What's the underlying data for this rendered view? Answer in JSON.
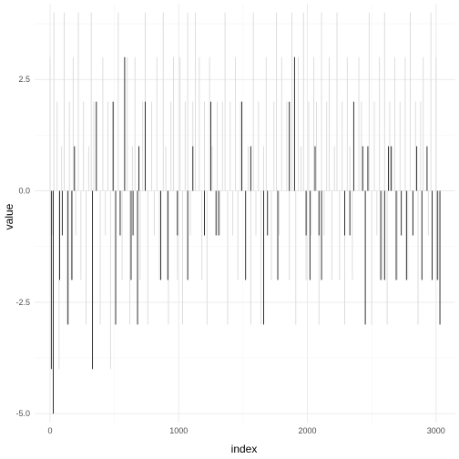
{
  "chart_data": {
    "type": "bar",
    "title": "",
    "xlabel": "index",
    "ylabel": "value",
    "xlim": [
      -120,
      3150
    ],
    "ylim": [
      -5.2,
      4.2
    ],
    "x_ticks": [
      0,
      1000,
      2000,
      3000
    ],
    "y_ticks": [
      -5.0,
      -2.5,
      0.0,
      2.5
    ],
    "x_tick_labels": [
      "0",
      "1000",
      "2000",
      "3000"
    ],
    "y_tick_labels": [
      "-5.0",
      "-2.5",
      "0.0",
      "2.5"
    ],
    "grid": true,
    "legend": "none",
    "colors": {
      "background": "#ffffff",
      "grid_major": "#ebebeb",
      "grid_minor": "#f5f5f5",
      "bar_dark": "#1a1a1a",
      "bar_light": "#d9d9d9"
    },
    "series": [
      {
        "shade": "light",
        "x": [
          0,
          15,
          30,
          55,
          70,
          90,
          110,
          130,
          150,
          165,
          180,
          200,
          220,
          240,
          260,
          280,
          300,
          320,
          340,
          390,
          410,
          430,
          450,
          470,
          490,
          530,
          560,
          600,
          620,
          640,
          660,
          700,
          720,
          740,
          760,
          790,
          810,
          830,
          850,
          880,
          900,
          920,
          940,
          960,
          990,
          1010,
          1030,
          1050,
          1070,
          1090,
          1110,
          1130,
          1160,
          1180,
          1200,
          1220,
          1240,
          1260,
          1300,
          1320,
          1340,
          1360,
          1380,
          1400,
          1420,
          1440,
          1460,
          1480,
          1540,
          1560,
          1580,
          1600,
          1620,
          1640,
          1660,
          1680,
          1720,
          1740,
          1760,
          1780,
          1800,
          1840,
          1860,
          1880,
          1910,
          1930,
          1950,
          1970,
          1990,
          2010,
          2030,
          2050,
          2070,
          2090,
          2110,
          2130,
          2150,
          2170,
          2190,
          2210,
          2230,
          2250,
          2270,
          2290,
          2310,
          2330,
          2350,
          2400,
          2420,
          2480,
          2500,
          2520,
          2540,
          2560,
          2580,
          2600,
          2620,
          2640,
          2660,
          2680,
          2700,
          2720,
          2760,
          2780,
          2800,
          2820,
          2840,
          2860,
          2880,
          2900,
          2940,
          2960,
          3000,
          3020
        ],
        "values": [
          3,
          -1,
          4,
          2,
          -4,
          1,
          4,
          -3,
          2,
          -2,
          3,
          -1,
          4,
          -2,
          2,
          -3,
          1,
          4,
          2,
          -3,
          3,
          -1,
          2,
          -4,
          2,
          4,
          -2,
          3,
          -3,
          1,
          3,
          -2,
          2,
          4,
          -3,
          2,
          -1,
          3,
          -2,
          4,
          1,
          -3,
          2,
          3,
          -2,
          3,
          -3,
          2,
          4,
          -1,
          2,
          4,
          3,
          -2,
          2,
          -3,
          3,
          1,
          2,
          -1,
          2,
          4,
          -3,
          2,
          -1,
          3,
          -2,
          2,
          1,
          -3,
          4,
          -1,
          2,
          -3,
          1,
          3,
          -2,
          2,
          4,
          -1,
          3,
          2,
          -2,
          4,
          -3,
          3,
          1,
          4,
          -2,
          2,
          -1,
          3,
          2,
          -3,
          4,
          -1,
          2,
          3,
          -2,
          1,
          4,
          -2,
          2,
          -3,
          3,
          1,
          -2,
          3,
          2,
          4,
          -3,
          2,
          -1,
          3,
          -2,
          4,
          -3,
          2,
          1,
          3,
          -2,
          2,
          3,
          -2,
          4,
          -1,
          2,
          -3,
          2,
          3,
          -1,
          4,
          3,
          -2
        ]
      },
      {
        "shade": "dark",
        "x": [
          10,
          25,
          75,
          95,
          140,
          170,
          190,
          330,
          360,
          490,
          510,
          545,
          580,
          630,
          645,
          680,
          690,
          740,
          860,
          915,
          990,
          1070,
          1110,
          1200,
          1250,
          1290,
          1310,
          1490,
          1520,
          1560,
          1660,
          1690,
          1770,
          1860,
          1900,
          1990,
          2020,
          2060,
          2090,
          2110,
          2290,
          2330,
          2360,
          2430,
          2450,
          2470,
          2570,
          2600,
          2630,
          2650,
          2690,
          2730,
          2770,
          2820,
          2850,
          2890,
          2930,
          2970,
          3010,
          3030
        ],
        "values": [
          -4,
          -5,
          -2,
          -1,
          -3,
          -2,
          1,
          -4,
          2,
          2,
          -3,
          -1,
          3,
          -2,
          -1,
          -3,
          1,
          2,
          -2,
          -2,
          -1,
          -2,
          1,
          -1,
          2,
          -1,
          -1,
          2,
          -2,
          1,
          -3,
          -1,
          -2,
          2,
          3,
          -1,
          -2,
          1,
          -1,
          -2,
          -1,
          -1,
          2,
          1,
          -3,
          1,
          -2,
          -2,
          1,
          1,
          -2,
          -1,
          -2,
          -1,
          1,
          -2,
          1,
          -2,
          -2,
          -3
        ]
      }
    ]
  }
}
